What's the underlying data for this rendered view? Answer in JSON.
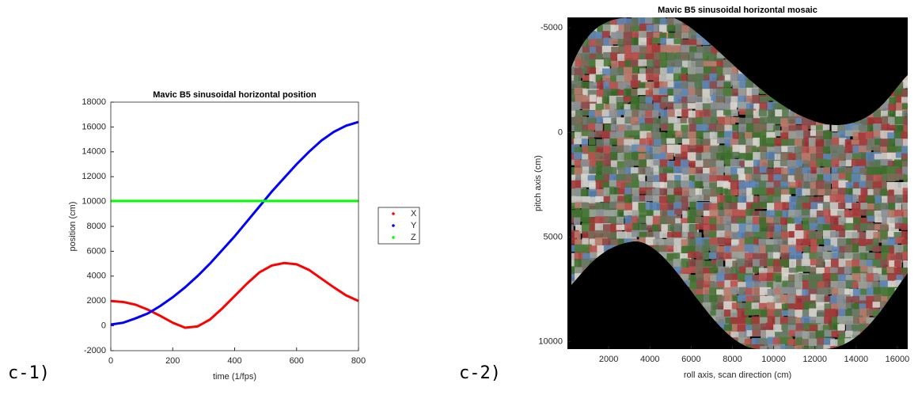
{
  "chart_data": [
    {
      "type": "line",
      "panel_label": "c-1)",
      "title": "Mavic B5 sinusoidal horizontal position",
      "x_label": "time (1/fps)",
      "y_label": "position (cm)",
      "x": [
        0,
        40,
        80,
        120,
        160,
        200,
        240,
        280,
        320,
        360,
        400,
        440,
        480,
        520,
        560,
        600,
        640,
        680,
        720,
        760,
        800
      ],
      "series": [
        {
          "name": "X",
          "color": "#ff0000",
          "values": [
            2000,
            1920,
            1700,
            1300,
            800,
            250,
            -150,
            -50,
            500,
            1400,
            2400,
            3400,
            4300,
            4850,
            5050,
            4950,
            4500,
            3800,
            3100,
            2450,
            2000
          ]
        },
        {
          "name": "Y",
          "color": "#0000ff",
          "values": [
            100,
            250,
            600,
            1000,
            1600,
            2300,
            3100,
            4000,
            5000,
            6100,
            7200,
            8400,
            9600,
            10800,
            11900,
            13000,
            14000,
            14900,
            15600,
            16100,
            16400
          ]
        },
        {
          "name": "Z",
          "color": "#00ff00",
          "values": [
            10050,
            10050,
            10050,
            10050,
            10050,
            10050,
            10050,
            10050,
            10050,
            10050,
            10050,
            10050,
            10050,
            10050,
            10050,
            10050,
            10050,
            10050,
            10050,
            10050,
            10050
          ]
        }
      ],
      "xlim": [
        0,
        800
      ],
      "xticks": [
        0,
        200,
        400,
        600,
        800
      ],
      "ylim": [
        -2000,
        18000
      ],
      "yticks": [
        -2000,
        0,
        2000,
        4000,
        6000,
        8000,
        10000,
        12000,
        14000,
        16000,
        18000
      ],
      "legend": "outside-right"
    },
    {
      "type": "image",
      "panel_label": "c-2)",
      "title": "Mavic B5 sinusoidal horizontal mosaic",
      "x_label": "roll axis, scan direction (cm)",
      "y_label": "pitch axis (cm)",
      "xlim": [
        0,
        16500
      ],
      "xticks": [
        2000,
        4000,
        6000,
        8000,
        10000,
        12000,
        14000,
        16000
      ],
      "ylim": [
        -5500,
        10350
      ],
      "yticks": [
        -5000,
        0,
        5000,
        10000
      ],
      "y_reversed": true
    }
  ]
}
